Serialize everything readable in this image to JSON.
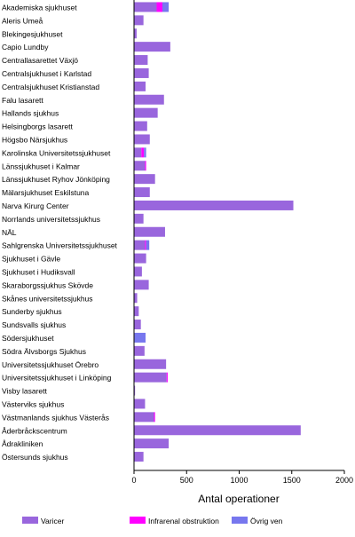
{
  "chart_data": {
    "type": "bar",
    "orientation": "horizontal",
    "stacked": true,
    "xlabel": "Antal operationer",
    "xlim": [
      0,
      2000
    ],
    "x_ticks": [
      0,
      500,
      1000,
      1500,
      2000
    ],
    "grid": false,
    "legend_position": "bottom",
    "categories": [
      "Akademiska sjukhuset",
      "Aleris Umeå",
      "Blekingesjukhuset",
      "Capio  Lundby",
      "Centrallasarettet Växjö",
      "Centralsjukhuset i Karlstad",
      "Centralsjukhuset Kristianstad",
      "Falu lasarett",
      "Hallands sjukhus",
      "Helsingborgs lasarett",
      "Högsbo Närsjukhus",
      "Karolinska Universitetssjukhuset",
      "Länssjukhuset i Kalmar",
      "Länssjukhuset Ryhov Jönköping",
      "Mälarsjukhuset  Eskilstuna",
      "Narva Kirurg Center",
      "Norrlands universitetssjukhus",
      "NÄL",
      "Sahlgrenska Universitetssjukhuset",
      "Sjukhuset i Gävle",
      "Sjukhuset i Hudiksvall",
      "Skaraborgssjukhus Skövde",
      "Skånes universitetssjukhus",
      "Sunderby sjukhus",
      "Sundsvalls sjukhus",
      "Södersjukhuset",
      "Södra Älvsborgs Sjukhus",
      "Universitetssjukhuset Örebro",
      "Universitetssjukhuset i Linköping",
      "Visby lasarett",
      "Västerviks sjukhus",
      "Västmanlands sjukhus Västerås",
      "Åderbråckscentrum",
      "Ådrakliniken",
      "Östersunds sjukhus"
    ],
    "series": [
      {
        "name": "Varicer",
        "color": "#9966dd",
        "values": [
          215,
          90,
          25,
          345,
          130,
          140,
          110,
          285,
          225,
          125,
          150,
          70,
          105,
          200,
          150,
          1515,
          90,
          295,
          105,
          115,
          75,
          140,
          30,
          45,
          65,
          5,
          100,
          305,
          310,
          10,
          105,
          190,
          1585,
          330,
          90
        ]
      },
      {
        "name": "Infrarenal obstruktion",
        "color": "#ff00ff",
        "values": [
          55,
          0,
          0,
          0,
          0,
          0,
          0,
          0,
          0,
          0,
          0,
          25,
          10,
          0,
          0,
          0,
          0,
          0,
          10,
          0,
          0,
          0,
          0,
          0,
          0,
          0,
          0,
          0,
          10,
          0,
          0,
          10,
          0,
          0,
          0
        ]
      },
      {
        "name": "Övrig ven",
        "color": "#7777ee",
        "values": [
          60,
          0,
          0,
          0,
          0,
          0,
          0,
          0,
          0,
          0,
          0,
          20,
          0,
          0,
          0,
          0,
          0,
          0,
          30,
          0,
          0,
          0,
          0,
          0,
          0,
          105,
          0,
          0,
          0,
          0,
          0,
          0,
          0,
          0,
          0
        ]
      }
    ]
  }
}
